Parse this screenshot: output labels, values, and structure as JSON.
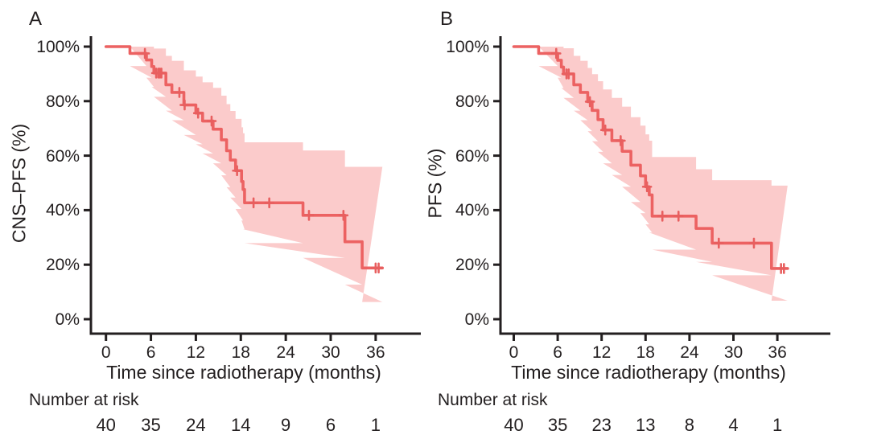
{
  "figure": {
    "background": "#ffffff",
    "colors": {
      "curve": "#ec6262",
      "band": "#fbcbcb",
      "censor": "#e85f5f",
      "axis": "#231f20",
      "text": "#231f20"
    }
  },
  "chart_data": [
    {
      "type": "line",
      "subtype": "kaplan-meier-step",
      "panel_letter": "A",
      "y_label": "CNS–PFS (%)",
      "x_label": "Time since radiotherapy (months)",
      "risk_label": "Number at risk",
      "x_ticks": [
        0,
        6,
        12,
        18,
        24,
        30,
        36
      ],
      "y_tick_values": [
        100,
        80,
        60,
        40,
        20,
        0
      ],
      "y_tick_labels": [
        "100%",
        "80%",
        "60%",
        "40%",
        "20%",
        "0%"
      ],
      "number_at_risk": [
        40,
        35,
        24,
        14,
        9,
        6,
        1
      ],
      "ylim": [
        0,
        100
      ],
      "xlim": [
        0,
        42
      ],
      "end_time": 36.9,
      "km_steps": [
        [
          0.0,
          100.0,
          100.0,
          100.0
        ],
        [
          3.2,
          97.5,
          92.9,
          100.0
        ],
        [
          5.4,
          95.1,
          88.6,
          100.0
        ],
        [
          6.1,
          92.7,
          85.2,
          100.0
        ],
        [
          6.4,
          90.3,
          81.6,
          99.3
        ],
        [
          8.0,
          86.0,
          76.5,
          96.6
        ],
        [
          8.8,
          83.2,
          73.0,
          94.8
        ],
        [
          10.4,
          78.6,
          67.6,
          91.3
        ],
        [
          12.0,
          75.6,
          64.2,
          89.0
        ],
        [
          12.9,
          72.7,
          60.8,
          86.9
        ],
        [
          14.3,
          69.7,
          57.2,
          84.9
        ],
        [
          15.4,
          65.8,
          52.8,
          82.0
        ],
        [
          16.1,
          61.8,
          48.4,
          78.9
        ],
        [
          16.6,
          58.4,
          44.6,
          76.4
        ],
        [
          17.3,
          54.5,
          40.4,
          73.5
        ],
        [
          18.1,
          50.5,
          36.2,
          70.4
        ],
        [
          18.3,
          47.6,
          33.0,
          68.2
        ],
        [
          18.5,
          42.7,
          27.9,
          64.9
        ],
        [
          26.3,
          38.1,
          22.5,
          61.9
        ],
        [
          31.9,
          28.4,
          12.7,
          55.9
        ],
        [
          34.2,
          18.8,
          6.3,
          55.9
        ]
      ],
      "censor_marks": [
        [
          5.2,
          97.5
        ],
        [
          6.7,
          90.3
        ],
        [
          7.0,
          90.3
        ],
        [
          7.2,
          90.3
        ],
        [
          7.4,
          90.3
        ],
        [
          9.8,
          83.2
        ],
        [
          10.5,
          78.6
        ],
        [
          12.3,
          75.6
        ],
        [
          14.1,
          72.7
        ],
        [
          17.5,
          54.5
        ],
        [
          19.7,
          42.7
        ],
        [
          21.8,
          42.7
        ],
        [
          27.1,
          38.1
        ],
        [
          31.7,
          38.1
        ],
        [
          36.0,
          18.8
        ],
        [
          36.4,
          18.8
        ]
      ]
    },
    {
      "type": "line",
      "subtype": "kaplan-meier-step",
      "panel_letter": "B",
      "y_label": "PFS (%)",
      "x_label": "Time since radiotherapy (months)",
      "risk_label": "Number at risk",
      "x_ticks": [
        0,
        6,
        12,
        18,
        24,
        30,
        36
      ],
      "y_tick_values": [
        100,
        80,
        60,
        40,
        20,
        0
      ],
      "y_tick_labels": [
        "100%",
        "80%",
        "60%",
        "40%",
        "20%",
        "0%"
      ],
      "number_at_risk": [
        40,
        35,
        23,
        13,
        8,
        4,
        1
      ],
      "ylim": [
        0,
        100
      ],
      "xlim": [
        0,
        42
      ],
      "end_time": 37.4,
      "km_steps": [
        [
          0.0,
          100.0,
          100.0,
          100.0
        ],
        [
          3.4,
          97.5,
          92.9,
          100.0
        ],
        [
          6.0,
          95.0,
          88.6,
          100.0
        ],
        [
          6.5,
          92.5,
          84.8,
          100.0
        ],
        [
          6.8,
          90.0,
          81.2,
          99.4
        ],
        [
          8.2,
          86.0,
          76.5,
          96.6
        ],
        [
          9.1,
          83.2,
          73.0,
          94.8
        ],
        [
          10.1,
          79.8,
          69.0,
          92.2
        ],
        [
          10.7,
          76.6,
          65.3,
          89.9
        ],
        [
          11.5,
          73.2,
          61.4,
          87.3
        ],
        [
          12.2,
          69.4,
          57.2,
          84.3
        ],
        [
          13.4,
          65.5,
          52.9,
          81.2
        ],
        [
          14.8,
          61.6,
          48.6,
          78.0
        ],
        [
          16.0,
          56.5,
          43.0,
          74.1
        ],
        [
          17.3,
          52.6,
          38.9,
          71.0
        ],
        [
          18.0,
          48.6,
          34.8,
          67.8
        ],
        [
          18.5,
          45.6,
          31.8,
          65.5
        ],
        [
          18.9,
          37.8,
          25.5,
          59.5
        ],
        [
          24.9,
          33.3,
          21.0,
          55.0
        ],
        [
          27.1,
          27.9,
          16.1,
          51.0
        ],
        [
          35.2,
          18.6,
          6.8,
          49.0
        ]
      ],
      "censor_marks": [
        [
          5.8,
          97.5
        ],
        [
          7.2,
          90.0
        ],
        [
          7.5,
          90.0
        ],
        [
          10.4,
          79.8
        ],
        [
          12.5,
          69.4
        ],
        [
          14.6,
          65.5
        ],
        [
          18.2,
          48.6
        ],
        [
          20.3,
          37.8
        ],
        [
          22.5,
          37.8
        ],
        [
          28.0,
          27.9
        ],
        [
          32.8,
          27.9
        ],
        [
          36.5,
          18.6
        ],
        [
          36.9,
          18.6
        ]
      ]
    }
  ]
}
